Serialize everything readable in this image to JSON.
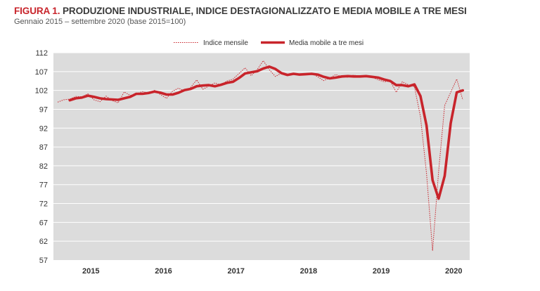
{
  "figure": {
    "label": "FIGURA 1.",
    "title": "PRODUZIONE INDUSTRIALE, INDICE DESTAGIONALIZZATO E MEDIA MOBILE A TRE MESI",
    "subtitle": "Gennaio 2015 – settembre 2020 (base 2015=100)"
  },
  "colors": {
    "plot_bg": "#dcdcdc",
    "gridline": "#ffffff",
    "series_main": "#c8242b",
    "legend_bg": "#ffffff"
  },
  "chart_data": {
    "type": "line",
    "title": "PRODUZIONE INDUSTRIALE, INDICE DESTAGIONALIZZATO E MEDIA MOBILE A TRE MESI",
    "subtitle": "Gennaio 2015 – settembre 2020 (base 2015=100)",
    "xlabel": "",
    "ylabel": "",
    "x_start": "2015-01",
    "x_frequency": "monthly",
    "x_tick_labels": [
      "2015",
      "2016",
      "2017",
      "2018",
      "2019",
      "2020"
    ],
    "ylim": [
      57,
      112
    ],
    "yticks": [
      57,
      62,
      67,
      72,
      77,
      82,
      87,
      92,
      97,
      102,
      107,
      112
    ],
    "grid": "horizontal",
    "legend_position": "top",
    "series": [
      {
        "name": "Indice mensile",
        "style": "dotted",
        "values": [
          98.9,
          99.5,
          99.7,
          100.4,
          100.3,
          101.1,
          99.5,
          99.0,
          100.5,
          99.3,
          98.7,
          101.6,
          100.7,
          101.0,
          101.7,
          101.3,
          102.0,
          100.9,
          99.9,
          101.8,
          102.6,
          101.8,
          102.8,
          104.8,
          102.3,
          103.1,
          104.0,
          103.4,
          104.5,
          105.0,
          106.5,
          108.0,
          105.9,
          107.5,
          109.9,
          107.5,
          105.7,
          106.6,
          106.0,
          106.5,
          106.0,
          106.5,
          106.6,
          105.6,
          104.6,
          105.3,
          106.2,
          105.6,
          105.5,
          106.1,
          105.5,
          105.8,
          105.5,
          104.8,
          104.3,
          104.5,
          101.5,
          104.3,
          103.5,
          103.0,
          95.0,
          80.0,
          59.5,
          80.5,
          98.0,
          101.5,
          105.0,
          99.5
        ]
      },
      {
        "name": "Media mobile a tre mesi",
        "style": "solid",
        "values": [
          null,
          null,
          99.4,
          99.9,
          100.1,
          100.6,
          100.3,
          99.9,
          99.7,
          99.6,
          99.5,
          99.9,
          100.3,
          101.1,
          101.1,
          101.3,
          101.7,
          101.4,
          100.9,
          100.9,
          101.4,
          102.1,
          102.4,
          103.1,
          103.3,
          103.4,
          103.1,
          103.5,
          104.0,
          104.3,
          105.3,
          106.5,
          106.8,
          107.1,
          107.8,
          108.3,
          107.7,
          106.6,
          106.1,
          106.4,
          106.2,
          106.3,
          106.4,
          106.2,
          105.6,
          105.2,
          105.4,
          105.7,
          105.8,
          105.7,
          105.7,
          105.8,
          105.6,
          105.4,
          104.9,
          104.5,
          103.4,
          103.4,
          103.1,
          103.6,
          100.5,
          92.7,
          78.2,
          73.3,
          79.3,
          93.3,
          101.5,
          102.0
        ]
      }
    ]
  }
}
